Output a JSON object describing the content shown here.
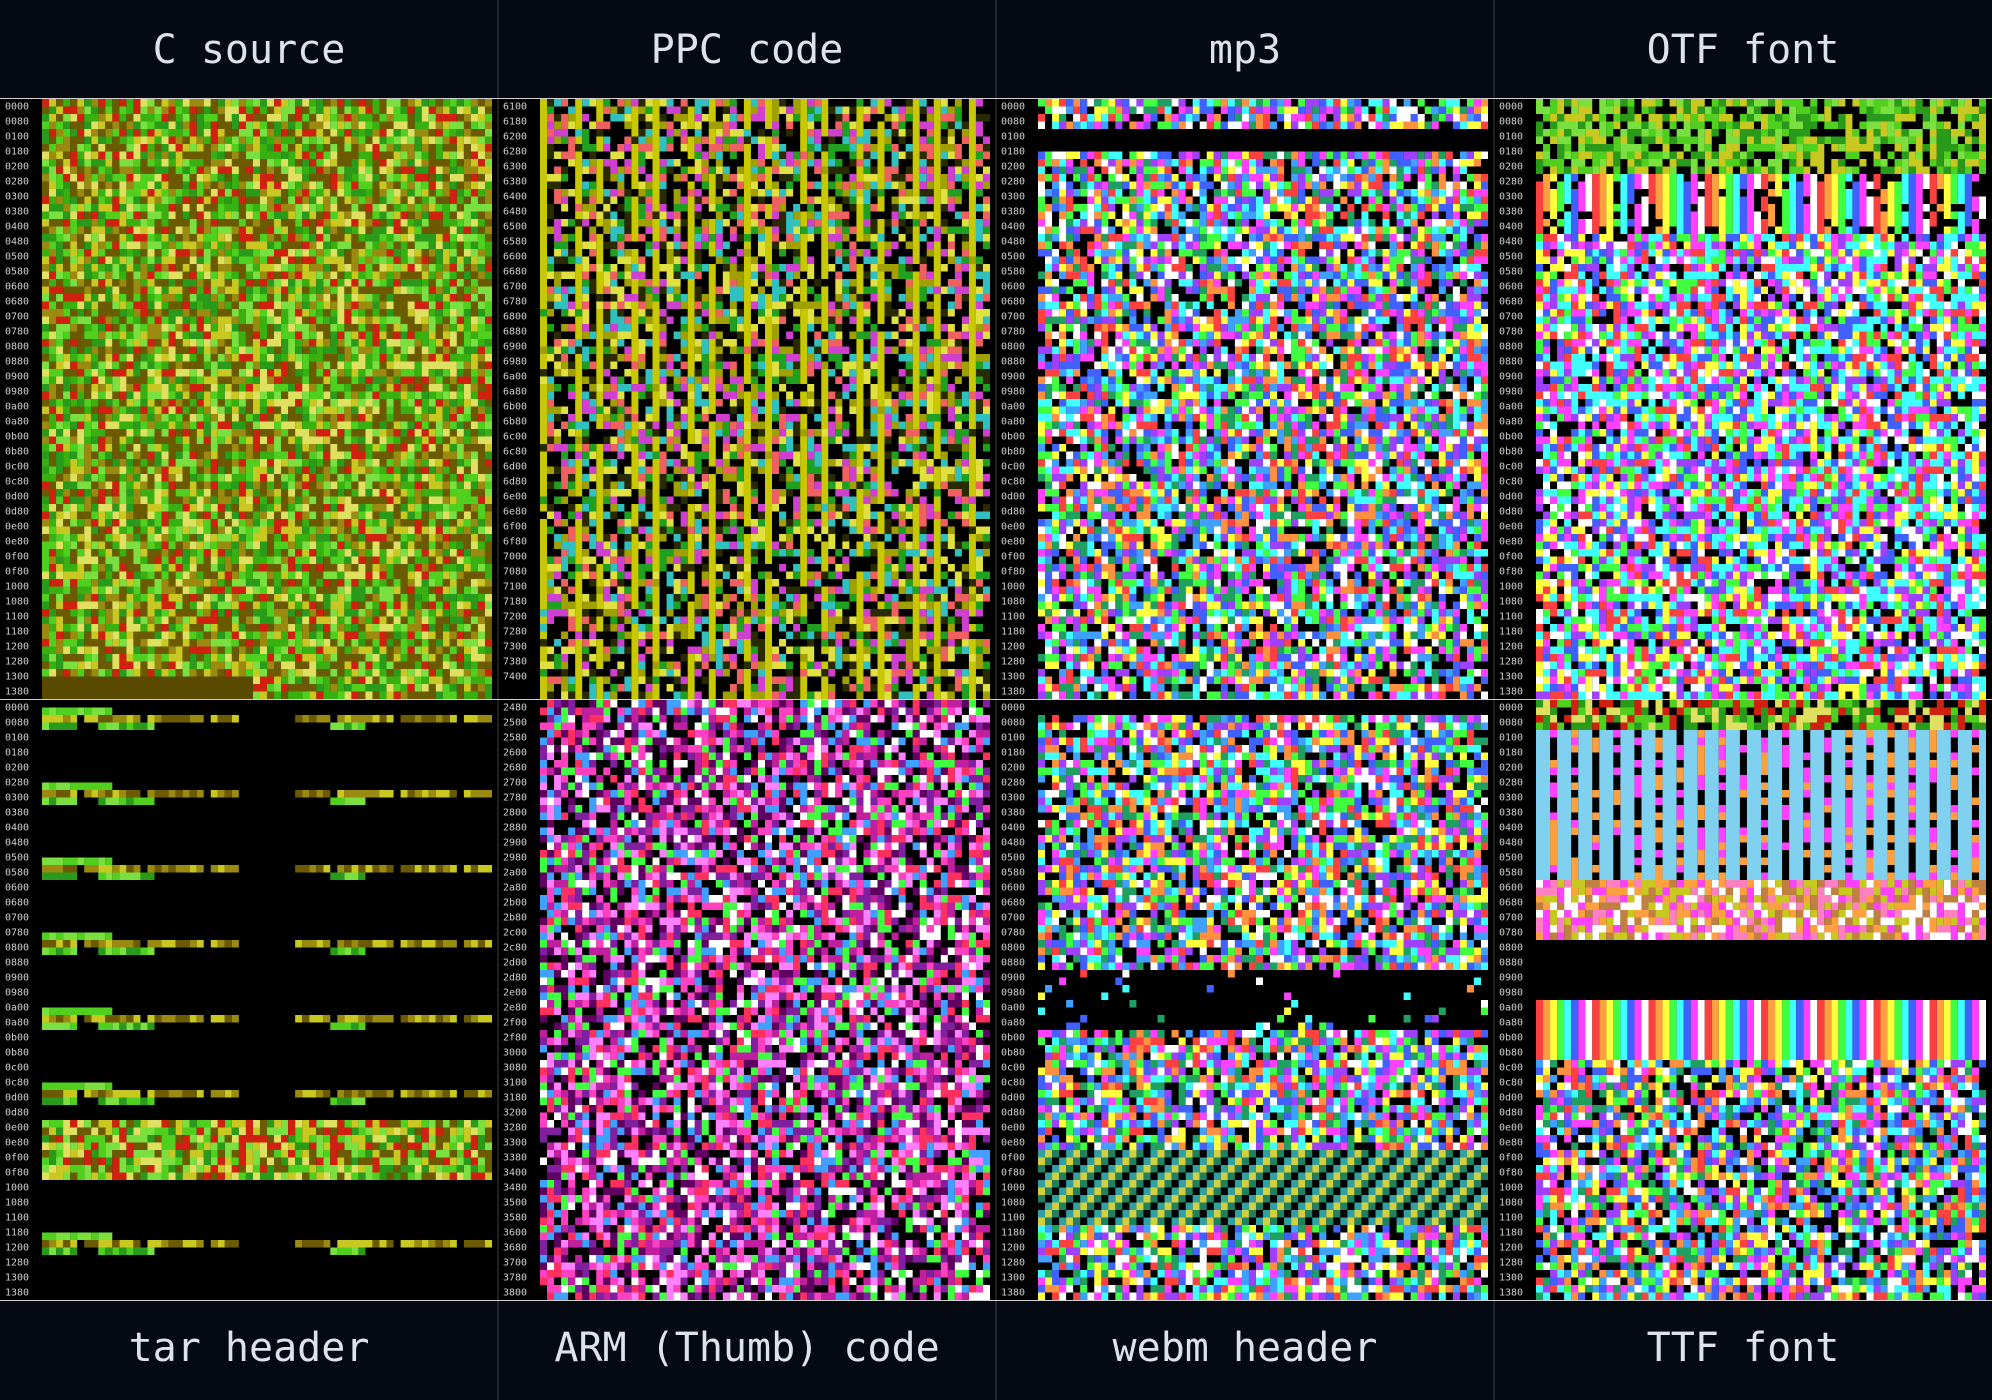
{
  "panels": [
    {
      "title": "C source",
      "addresses": [
        "0000",
        "0080",
        "0100",
        "0180",
        "0200",
        "0280",
        "0300",
        "0380",
        "0400",
        "0480",
        "0500",
        "0580",
        "0600",
        "0680",
        "0700",
        "0780",
        "0800",
        "0880",
        "0900",
        "0980",
        "0a00",
        "0a80",
        "0b00",
        "0b80",
        "0c00",
        "0c80",
        "0d00",
        "0d80",
        "0e00",
        "0e80",
        "0f00",
        "0f80",
        "1000",
        "1080",
        "1100",
        "1180",
        "1200",
        "1280",
        "1300",
        "1380"
      ]
    },
    {
      "title": "PPC code",
      "addresses": [
        "6100",
        "6180",
        "6200",
        "6280",
        "6300",
        "6380",
        "6400",
        "6480",
        "6500",
        "6580",
        "6600",
        "6680",
        "6700",
        "6780",
        "6800",
        "6880",
        "6900",
        "6980",
        "6a00",
        "6a80",
        "6b00",
        "6b80",
        "6c00",
        "6c80",
        "6d00",
        "6d80",
        "6e00",
        "6e80",
        "6f00",
        "6f80",
        "7000",
        "7080",
        "7100",
        "7180",
        "7200",
        "7280",
        "7300",
        "7380",
        "7400"
      ]
    },
    {
      "title": "mp3",
      "addresses": [
        "0000",
        "0080",
        "0100",
        "0180",
        "0200",
        "0280",
        "0300",
        "0380",
        "0400",
        "0480",
        "0500",
        "0580",
        "0600",
        "0680",
        "0700",
        "0780",
        "0800",
        "0880",
        "0900",
        "0980",
        "0a00",
        "0a80",
        "0b00",
        "0b80",
        "0c00",
        "0c80",
        "0d00",
        "0d80",
        "0e00",
        "0e80",
        "0f00",
        "0f80",
        "1000",
        "1080",
        "1100",
        "1180",
        "1200",
        "1280",
        "1300",
        "1380"
      ]
    },
    {
      "title": "OTF font",
      "addresses": [
        "0000",
        "0080",
        "0100",
        "0180",
        "0200",
        "0280",
        "0300",
        "0380",
        "0400",
        "0480",
        "0500",
        "0580",
        "0600",
        "0680",
        "0700",
        "0780",
        "0800",
        "0880",
        "0900",
        "0980",
        "0a00",
        "0a80",
        "0b00",
        "0b80",
        "0c00",
        "0c80",
        "0d00",
        "0d80",
        "0e00",
        "0e80",
        "0f00",
        "0f80",
        "1000",
        "1080",
        "1100",
        "1180",
        "1200",
        "1280",
        "1300",
        "1380"
      ]
    },
    {
      "title": "tar header",
      "addresses": [
        "0000",
        "0080",
        "0100",
        "0180",
        "0200",
        "0280",
        "0300",
        "0380",
        "0400",
        "0480",
        "0500",
        "0580",
        "0600",
        "0680",
        "0700",
        "0780",
        "0800",
        "0880",
        "0900",
        "0980",
        "0a00",
        "0a80",
        "0b00",
        "0b80",
        "0c00",
        "0c80",
        "0d00",
        "0d80",
        "0e00",
        "0e80",
        "0f00",
        "0f80",
        "1000",
        "1080",
        "1100",
        "1180",
        "1200",
        "1280",
        "1300",
        "1380"
      ]
    },
    {
      "title": "ARM (Thumb) code",
      "addresses": [
        "2480",
        "2500",
        "2580",
        "2600",
        "2680",
        "2700",
        "2780",
        "2800",
        "2880",
        "2900",
        "2980",
        "2a00",
        "2a80",
        "2b00",
        "2b80",
        "2c00",
        "2c80",
        "2d00",
        "2d80",
        "2e00",
        "2e80",
        "2f00",
        "2f80",
        "3000",
        "3080",
        "3100",
        "3180",
        "3200",
        "3280",
        "3300",
        "3380",
        "3400",
        "3480",
        "3500",
        "3580",
        "3600",
        "3680",
        "3700",
        "3780",
        "3800"
      ]
    },
    {
      "title": "webm header",
      "addresses": [
        "0000",
        "0080",
        "0100",
        "0180",
        "0200",
        "0280",
        "0300",
        "0380",
        "0400",
        "0480",
        "0500",
        "0580",
        "0600",
        "0680",
        "0700",
        "0780",
        "0800",
        "0880",
        "0900",
        "0980",
        "0a00",
        "0a80",
        "0b00",
        "0b80",
        "0c00",
        "0c80",
        "0d00",
        "0d80",
        "0e00",
        "0e80",
        "0f00",
        "0f80",
        "1000",
        "1080",
        "1100",
        "1180",
        "1200",
        "1280",
        "1300",
        "1380"
      ]
    },
    {
      "title": "TTF font",
      "addresses": [
        "0000",
        "0080",
        "0100",
        "0180",
        "0200",
        "0280",
        "0300",
        "0380",
        "0400",
        "0480",
        "0500",
        "0580",
        "0600",
        "0680",
        "0700",
        "0780",
        "0800",
        "0880",
        "0900",
        "0980",
        "0a00",
        "0a80",
        "0b00",
        "0b80",
        "0c00",
        "0c80",
        "0d00",
        "0d80",
        "0e00",
        "0e80",
        "0f00",
        "0f80",
        "1000",
        "1080",
        "1100",
        "1180",
        "1200",
        "1280",
        "1300",
        "1380"
      ]
    }
  ]
}
